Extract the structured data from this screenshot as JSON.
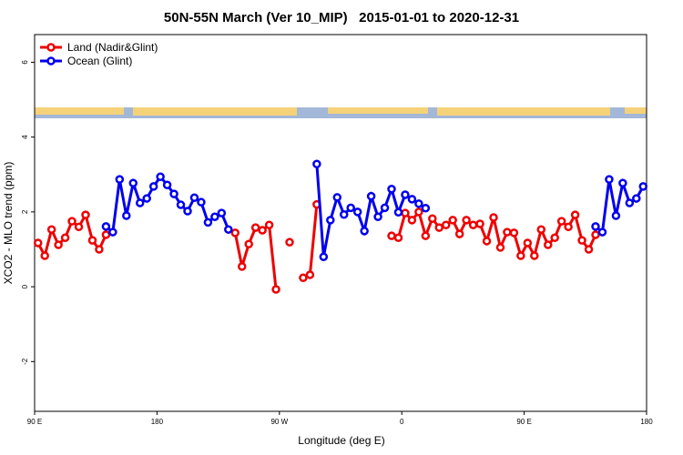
{
  "chart_data": {
    "type": "line",
    "title": "50N-55N March (Ver 10_MIP)   2015-01-01 to 2020-12-31",
    "x_label": "Longitude (deg E)",
    "y_label": "XCO2 - MLO trend (ppm)",
    "x": [
      92.5,
      97.5,
      102.5,
      107.5,
      112.5,
      117.5,
      122.5,
      127.5,
      132.5,
      137.5,
      142.5,
      147.5,
      152.5,
      157.5,
      162.5,
      167.5,
      172.5,
      177.5,
      182.5,
      187.5,
      192.5,
      197.5,
      202.5,
      207.5,
      212.5,
      217.5,
      222.5,
      227.5,
      232.5,
      237.5,
      242.5,
      247.5,
      252.5,
      257.5,
      262.5,
      267.5,
      272.5,
      277.5,
      282.5,
      287.5,
      292.5,
      297.5,
      302.5,
      307.5,
      312.5,
      317.5,
      322.5,
      327.5,
      332.5,
      337.5,
      342.5,
      347.5,
      352.5,
      357.5,
      362.5,
      367.5,
      372.5,
      377.5,
      382.5,
      387.5,
      392.5,
      397.5,
      402.5,
      407.5,
      412.5,
      417.5,
      422.5,
      427.5,
      432.5,
      437.5,
      442.5,
      447.5,
      452.5,
      457.5,
      462.5,
      467.5,
      472.5,
      477.5,
      482.5,
      487.5,
      492.5,
      497.5,
      502.5,
      507.5,
      512.5,
      517.5,
      522.5,
      527.5,
      532.5,
      537.5
    ],
    "series": [
      {
        "name": "Land (Nadir&Glint)",
        "color": "#ee0000",
        "values": [
          1.17,
          0.83,
          1.53,
          1.12,
          1.31,
          1.75,
          1.6,
          1.92,
          1.24,
          1.0,
          1.39,
          null,
          null,
          null,
          null,
          null,
          null,
          null,
          null,
          null,
          null,
          null,
          null,
          null,
          null,
          null,
          null,
          null,
          null,
          1.44,
          0.54,
          1.14,
          1.58,
          1.51,
          1.65,
          -0.07,
          null,
          1.19,
          null,
          0.24,
          0.32,
          2.2,
          null,
          null,
          null,
          null,
          null,
          null,
          null,
          null,
          null,
          null,
          1.36,
          1.31,
          1.97,
          1.78,
          2.0,
          1.36,
          1.82,
          1.58,
          1.65,
          1.78,
          1.41,
          1.78,
          1.65,
          1.68,
          1.22,
          1.85,
          1.05,
          1.46,
          1.44,
          0.83,
          1.17,
          0.83,
          1.53,
          1.12,
          1.31,
          1.75,
          1.6,
          1.92,
          1.24,
          1.0,
          1.39,
          null,
          null,
          null,
          null,
          null,
          null,
          null
        ]
      },
      {
        "name": "Ocean (Glint)",
        "color": "#0000ee",
        "values": [
          null,
          null,
          null,
          null,
          null,
          null,
          null,
          null,
          null,
          null,
          1.61,
          1.46,
          2.87,
          1.9,
          2.77,
          2.24,
          2.36,
          2.68,
          2.94,
          2.72,
          2.48,
          2.19,
          2.02,
          2.38,
          2.26,
          1.72,
          1.87,
          1.97,
          1.53,
          null,
          null,
          null,
          null,
          null,
          null,
          null,
          null,
          null,
          null,
          null,
          null,
          3.28,
          0.8,
          1.78,
          2.39,
          1.93,
          2.11,
          2.0,
          1.49,
          2.42,
          1.87,
          2.11,
          2.61,
          1.99,
          2.46,
          2.34,
          2.22,
          2.1,
          null,
          null,
          null,
          null,
          null,
          null,
          null,
          null,
          null,
          null,
          null,
          null,
          null,
          null,
          null,
          null,
          null,
          null,
          null,
          null,
          null,
          null,
          null,
          null,
          1.61,
          1.46,
          2.87,
          1.9,
          2.77,
          2.24,
          2.36,
          2.68
        ]
      }
    ],
    "xlim": [
      90,
      540
    ],
    "xticks": [
      {
        "value": 90,
        "label": "90 E"
      },
      {
        "value": 180,
        "label": "180"
      },
      {
        "value": 270,
        "label": "90 W"
      },
      {
        "value": 360,
        "label": "0"
      },
      {
        "value": 450,
        "label": "90 E"
      },
      {
        "value": 540,
        "label": "180"
      }
    ],
    "ylim": [
      -3.33,
      6.74
    ],
    "yticks": [
      -2,
      0,
      2,
      4,
      6
    ],
    "legend": "upper left"
  }
}
